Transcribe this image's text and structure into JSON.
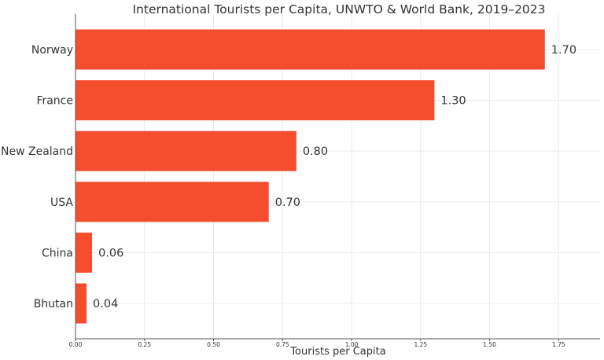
{
  "chart_data": {
    "type": "bar",
    "orientation": "horizontal",
    "title": "International Tourists per Capita, UNWTO & World Bank, 2019–2023",
    "xlabel": "Tourists per Capita",
    "ylabel": "",
    "categories": [
      "Norway",
      "France",
      "New Zealand",
      "USA",
      "China",
      "Bhutan"
    ],
    "values": [
      1.7,
      1.3,
      0.8,
      0.7,
      0.06,
      0.04
    ],
    "value_labels": [
      "1.70",
      "1.30",
      "0.80",
      "0.70",
      "0.06",
      "0.04"
    ],
    "xlim": [
      0,
      1.9
    ],
    "xticks": [
      0.0,
      0.25,
      0.5,
      0.75,
      1.0,
      1.25,
      1.5,
      1.75
    ],
    "xtick_labels": [
      "0.00",
      "0.25",
      "0.50",
      "0.75",
      "1.00",
      "1.25",
      "1.50",
      "1.75"
    ],
    "grid": true,
    "bar_color": "#f44e2e"
  }
}
